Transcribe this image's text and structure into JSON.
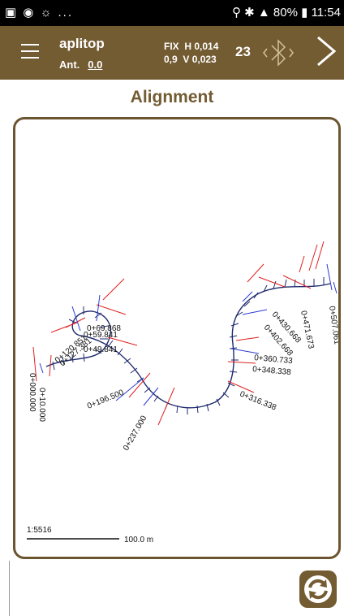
{
  "status_bar": {
    "left_icons": "▣ ◉ ☼ ...",
    "battery": "80%",
    "time": "11:54"
  },
  "app_bar": {
    "title": "aplitop",
    "antenna_label": "Ant.",
    "antenna_value": "0.0",
    "fix_label": "FIX",
    "h_precision": "H 0,014",
    "pdop": "0,9",
    "v_precision": "V 0,023",
    "satellites": "23"
  },
  "page_title": "Alignment",
  "map": {
    "scale_label": "1:5516",
    "scale_bar_label": "100.0 m",
    "stations": [
      "0+000.000",
      "0+10.000",
      "0+49.841",
      "0+59.841",
      "0+69.868",
      "0+120.851",
      "0+127.381",
      "0+196.500",
      "0+237.000",
      "0+316.338",
      "0+348.338",
      "0+360.733",
      "0+402.668",
      "0+430.668",
      "0+471.673",
      "0+507.061"
    ]
  },
  "colors": {
    "brand": "#735b32",
    "alignment": "#1f2a6e",
    "perpendicular_red": "#e02020",
    "perpendicular_blue": "#2a3cd0"
  }
}
